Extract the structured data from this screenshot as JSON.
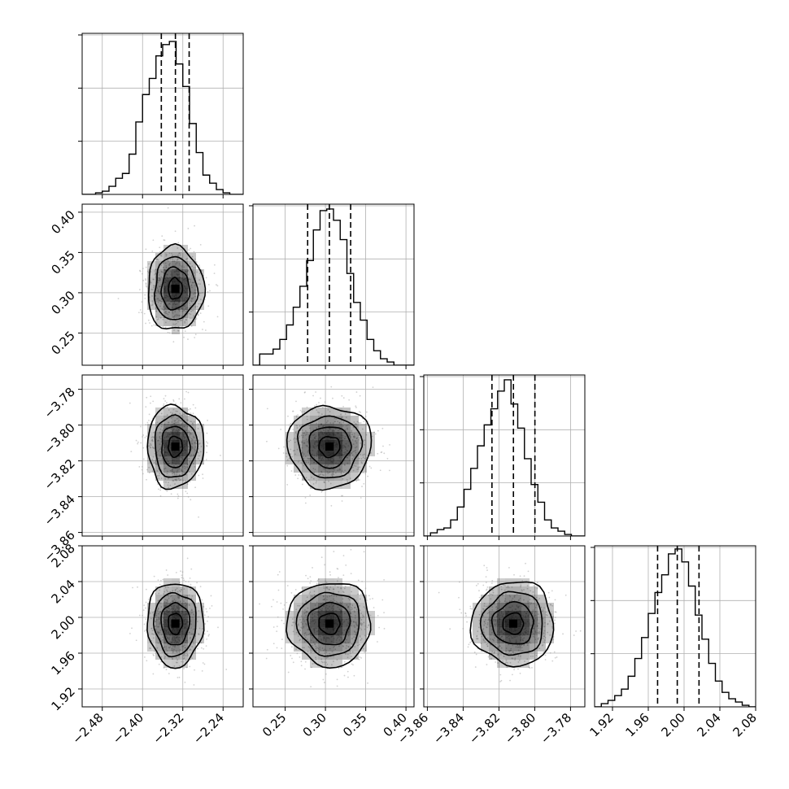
{
  "chart_data": {
    "type": "corner",
    "parameters": [
      {
        "range": [
          -2.52,
          -2.2
        ],
        "ticks": [
          -2.48,
          -2.4,
          -2.32,
          -2.24
        ],
        "tick_labels": [
          "−2.48",
          "−2.40",
          "−2.32",
          "−2.24"
        ],
        "mean": -2.335,
        "sd": 0.028,
        "quantiles": [
          -2.3627,
          -2.3347,
          -2.3074
        ]
      },
      {
        "range": [
          0.21,
          0.41
        ],
        "ticks": [
          0.25,
          0.3,
          0.35,
          0.4
        ],
        "tick_labels": [
          "0.25",
          "0.30",
          "0.35",
          "0.40"
        ],
        "mean": 0.305,
        "sd": 0.026,
        "quantiles": [
          0.2779,
          0.3049,
          0.3313
        ]
      },
      {
        "range": [
          -3.862,
          -3.772
        ],
        "ticks": [
          -3.86,
          -3.84,
          -3.82,
          -3.8,
          -3.78
        ],
        "tick_labels": [
          "−3.86",
          "−3.84",
          "−3.82",
          "−3.80",
          "−3.78"
        ],
        "mean": -3.812,
        "sd": 0.0115,
        "quantiles": [
          -3.8239,
          -3.8119,
          -3.7999
        ]
      },
      {
        "range": [
          1.9,
          2.08
        ],
        "ticks": [
          1.92,
          1.96,
          2.0,
          2.04,
          2.08
        ],
        "tick_labels": [
          "1.92",
          "1.96",
          "2.00",
          "2.04",
          "2.08"
        ],
        "mean": 1.993,
        "sd": 0.0235,
        "quantiles": [
          1.9704,
          1.9924,
          2.0167
        ]
      }
    ],
    "histograms": [
      [
        0.0,
        0.0,
        0.01,
        0.02,
        0.05,
        0.1,
        0.13,
        0.25,
        0.45,
        0.62,
        0.72,
        0.86,
        0.93,
        0.95,
        0.81,
        0.67,
        0.44,
        0.26,
        0.12,
        0.07,
        0.03,
        0.01,
        0.0,
        0.0
      ],
      [
        0.0,
        0.07,
        0.07,
        0.1,
        0.16,
        0.25,
        0.36,
        0.49,
        0.65,
        0.84,
        0.96,
        0.97,
        0.9,
        0.78,
        0.57,
        0.39,
        0.28,
        0.16,
        0.09,
        0.04,
        0.02,
        0.0,
        0.0,
        0.0
      ],
      [
        0.0,
        0.02,
        0.04,
        0.05,
        0.1,
        0.18,
        0.29,
        0.42,
        0.56,
        0.69,
        0.79,
        0.9,
        0.97,
        0.82,
        0.67,
        0.48,
        0.32,
        0.21,
        0.1,
        0.05,
        0.03,
        0.01,
        0.0,
        0.0
      ],
      [
        0.0,
        0.02,
        0.04,
        0.07,
        0.11,
        0.19,
        0.3,
        0.43,
        0.58,
        0.71,
        0.82,
        0.95,
        0.98,
        0.9,
        0.75,
        0.57,
        0.42,
        0.27,
        0.16,
        0.09,
        0.05,
        0.03,
        0.01,
        0.0
      ]
    ],
    "joint": {
      "contour_levels_sigma": [
        0.5,
        1.0,
        1.5,
        2.0
      ],
      "correlation": 0,
      "grid": true
    }
  },
  "colors": {
    "frame": "#000000",
    "grid": "#b0b0b0",
    "samples": "#9a9a9a",
    "contour": "#000000",
    "density": "#000000"
  }
}
